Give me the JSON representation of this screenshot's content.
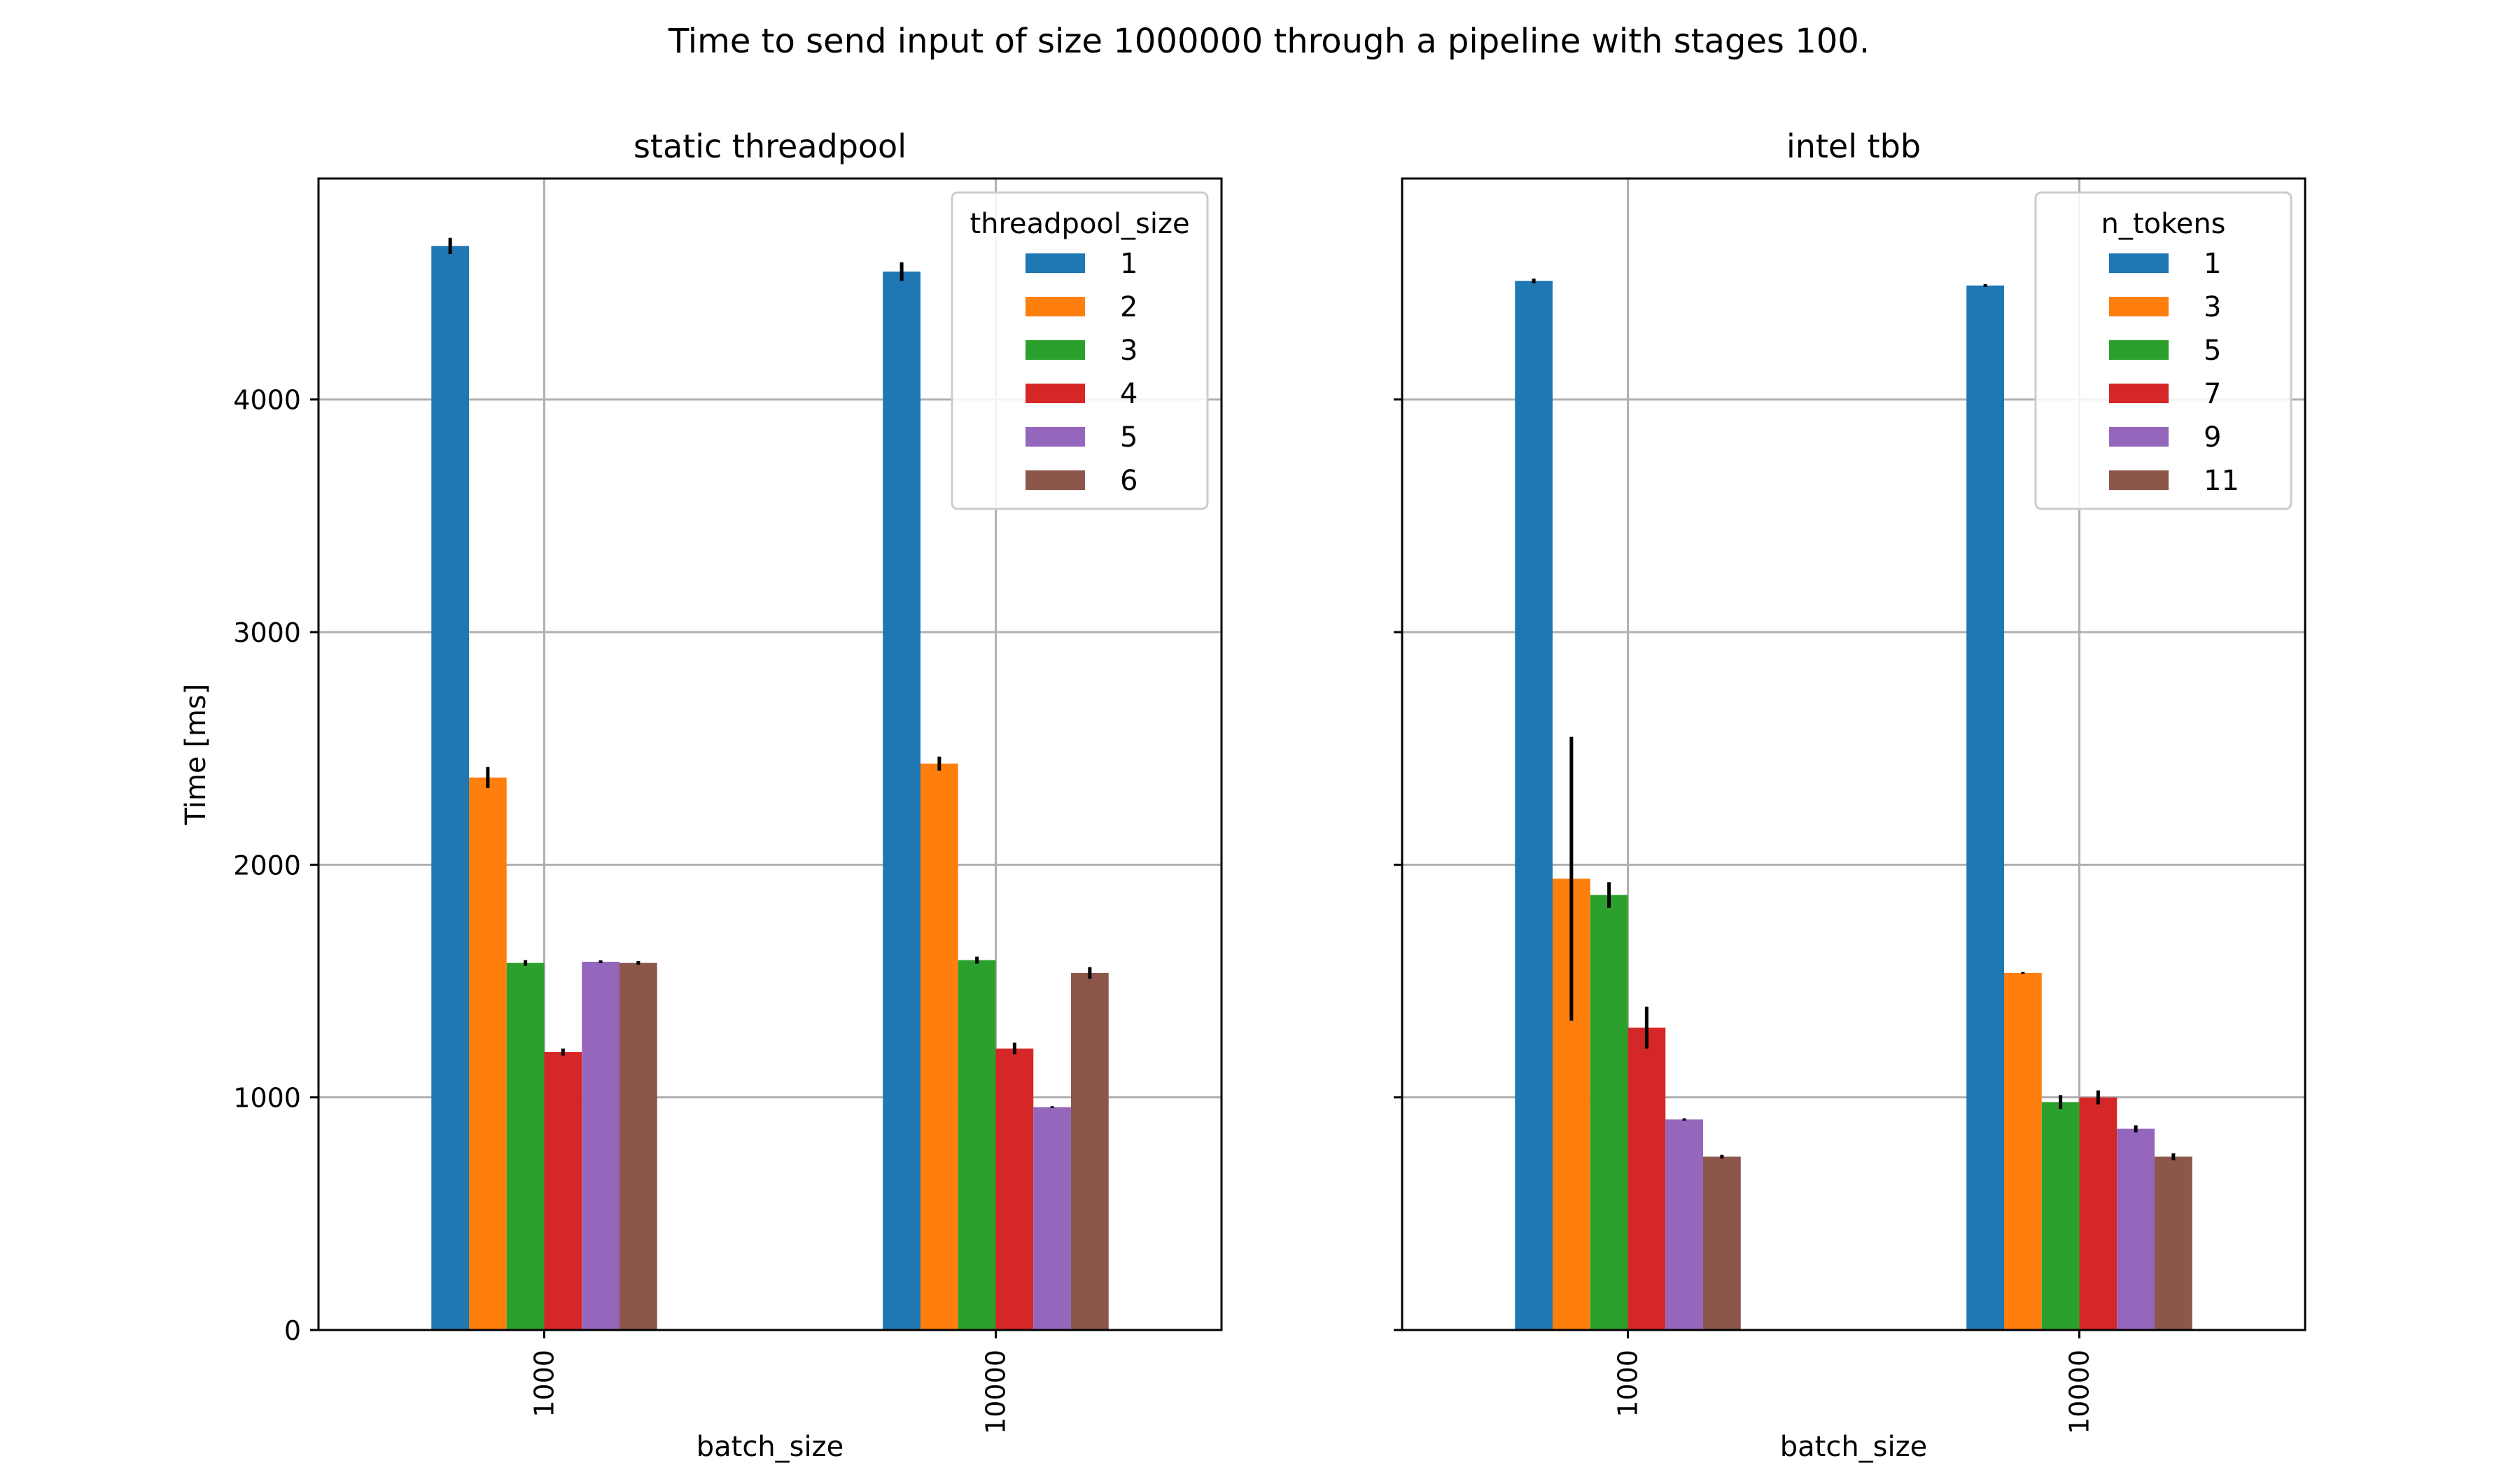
{
  "figure": {
    "suptitle": "Time to send input of size 1000000 through a pipeline with stages 100."
  },
  "colors": [
    "#1f77b4",
    "#ff7f0e",
    "#2ca02c",
    "#d62728",
    "#9467bd",
    "#8c564b"
  ],
  "chart_data": [
    {
      "type": "bar",
      "title": "static threadpool",
      "xlabel": "batch_size",
      "ylabel": "Time [ms]",
      "ylim": [
        0,
        4950
      ],
      "yticks": [
        0,
        1000,
        2000,
        3000,
        4000
      ],
      "grid": true,
      "legend": {
        "title": "threadpool_size",
        "placement": "top-right"
      },
      "categories": [
        "1000",
        "10000"
      ],
      "series": [
        {
          "name": "1",
          "values": [
            4660,
            4550
          ],
          "errors": [
            35,
            40
          ]
        },
        {
          "name": "2",
          "values": [
            2375,
            2435
          ],
          "errors": [
            45,
            30
          ]
        },
        {
          "name": "3",
          "values": [
            1578,
            1590
          ],
          "errors": [
            12,
            15
          ]
        },
        {
          "name": "4",
          "values": [
            1195,
            1210
          ],
          "errors": [
            15,
            25
          ]
        },
        {
          "name": "5",
          "values": [
            1583,
            958
          ],
          "errors": [
            6,
            4
          ]
        },
        {
          "name": "6",
          "values": [
            1578,
            1535
          ],
          "errors": [
            8,
            25
          ]
        }
      ]
    },
    {
      "type": "bar",
      "title": "intel tbb",
      "xlabel": "batch_size",
      "ylabel": "",
      "ylim": [
        0,
        4950
      ],
      "yticks": [
        0,
        1000,
        2000,
        3000,
        4000
      ],
      "grid": true,
      "legend": {
        "title": "n_tokens",
        "placement": "top-right"
      },
      "categories": [
        "1000",
        "10000"
      ],
      "series": [
        {
          "name": "1",
          "values": [
            4510,
            4490
          ],
          "errors": [
            10,
            6
          ]
        },
        {
          "name": "3",
          "values": [
            1940,
            1535
          ],
          "errors": [
            610,
            4
          ]
        },
        {
          "name": "5",
          "values": [
            1870,
            980
          ],
          "errors": [
            55,
            30
          ]
        },
        {
          "name": "7",
          "values": [
            1300,
            1000
          ],
          "errors": [
            90,
            30
          ]
        },
        {
          "name": "9",
          "values": [
            905,
            865
          ],
          "errors": [
            5,
            15
          ]
        },
        {
          "name": "11",
          "values": [
            745,
            745
          ],
          "errors": [
            8,
            15
          ]
        }
      ]
    }
  ]
}
